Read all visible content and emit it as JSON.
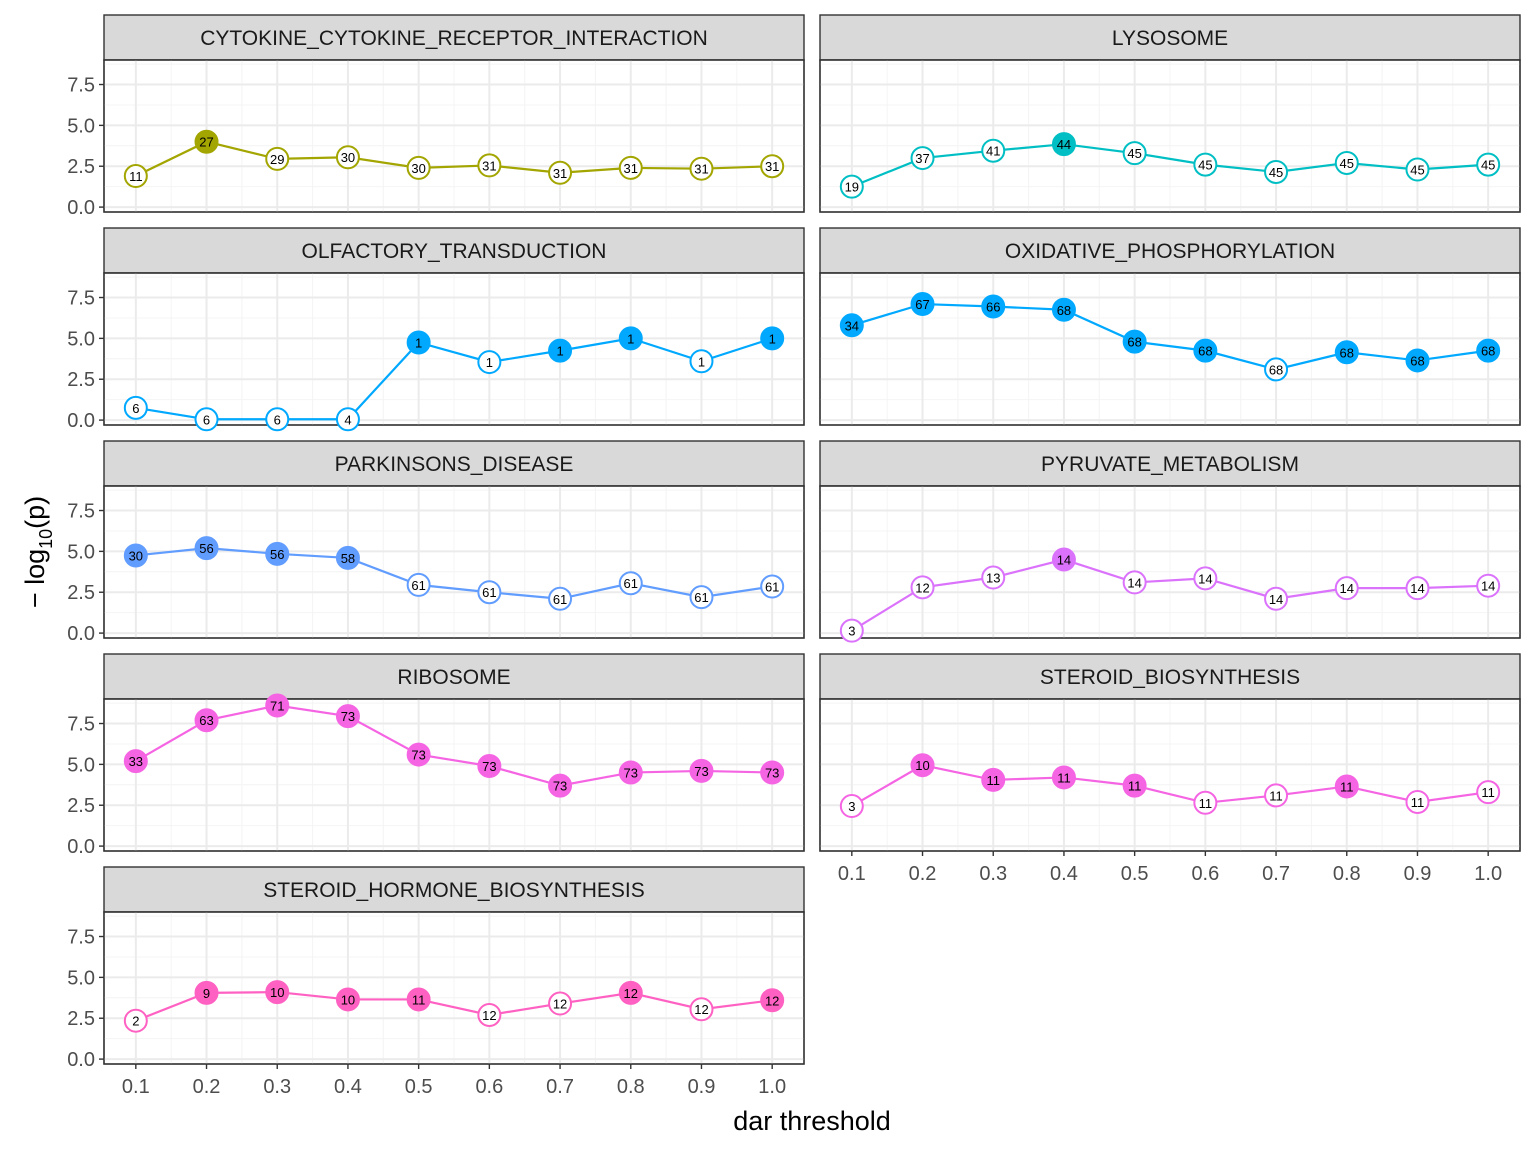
{
  "chart_data": {
    "type": "line",
    "xlabel": "dar threshold",
    "ylabel": "− log",
    "ylabel_sub": "10",
    "ylabel_tail": "(p)",
    "x": [
      0.1,
      0.2,
      0.3,
      0.4,
      0.5,
      0.6,
      0.7,
      0.8,
      0.9,
      1.0
    ],
    "x_tick_labels": [
      "0.1",
      "0.2",
      "0.3",
      "0.4",
      "0.5",
      "0.6",
      "0.7",
      "0.8",
      "0.9",
      "1.0"
    ],
    "y_ticks": [
      0,
      2.5,
      5,
      7.5
    ],
    "y_tick_labels": [
      "0.0",
      "2.5",
      "5.0",
      "7.5"
    ],
    "ylim": [
      -0.3,
      9.0
    ],
    "xlim": [
      0.055,
      1.045
    ],
    "facets": [
      {
        "name": "CYTOKINE_CYTOKINE_RECEPTOR_INTERACTION",
        "color": "#a3a500",
        "y": [
          1.9,
          4.0,
          2.95,
          3.05,
          2.4,
          2.55,
          2.1,
          2.4,
          2.35,
          2.5
        ],
        "labels": [
          "11",
          "27",
          "29",
          "30",
          "30",
          "31",
          "31",
          "31",
          "31",
          "31"
        ],
        "filled": [
          false,
          true,
          false,
          false,
          false,
          false,
          false,
          false,
          false,
          false
        ]
      },
      {
        "name": "LYSOSOME",
        "color": "#00bfc4",
        "y": [
          1.25,
          3.0,
          3.45,
          3.85,
          3.3,
          2.6,
          2.15,
          2.7,
          2.3,
          2.6
        ],
        "labels": [
          "19",
          "37",
          "41",
          "44",
          "45",
          "45",
          "45",
          "45",
          "45",
          "45"
        ],
        "filled": [
          false,
          false,
          false,
          true,
          false,
          false,
          false,
          false,
          false,
          false
        ]
      },
      {
        "name": "OLFACTORY_TRANSDUCTION",
        "color": "#00a9ff",
        "y": [
          0.75,
          0.05,
          0.05,
          0.05,
          4.75,
          3.55,
          4.25,
          5.0,
          3.6,
          5.0
        ],
        "labels": [
          "6",
          "6",
          "6",
          "4",
          "1",
          "1",
          "1",
          "1",
          "1",
          "1"
        ],
        "filled": [
          false,
          false,
          false,
          false,
          true,
          false,
          true,
          true,
          false,
          true
        ]
      },
      {
        "name": "OXIDATIVE_PHOSPHORYLATION",
        "color": "#00a9ff",
        "y": [
          5.8,
          7.1,
          6.95,
          6.75,
          4.8,
          4.25,
          3.1,
          4.15,
          3.65,
          4.25
        ],
        "labels": [
          "34",
          "67",
          "66",
          "68",
          "68",
          "68",
          "68",
          "68",
          "68",
          "68"
        ],
        "filled": [
          true,
          true,
          true,
          true,
          true,
          true,
          false,
          true,
          true,
          true
        ]
      },
      {
        "name": "PARKINSONS_DISEASE",
        "color": "#619cff",
        "y": [
          4.75,
          5.2,
          4.85,
          4.6,
          2.95,
          2.5,
          2.1,
          3.05,
          2.2,
          2.85
        ],
        "labels": [
          "30",
          "56",
          "56",
          "58",
          "61",
          "61",
          "61",
          "61",
          "61",
          "61"
        ],
        "filled": [
          true,
          true,
          true,
          true,
          false,
          false,
          false,
          false,
          false,
          false
        ]
      },
      {
        "name": "PYRUVATE_METABOLISM",
        "color": "#db72fb",
        "y": [
          0.15,
          2.8,
          3.4,
          4.5,
          3.1,
          3.35,
          2.1,
          2.75,
          2.75,
          2.9
        ],
        "labels": [
          "3",
          "12",
          "13",
          "14",
          "14",
          "14",
          "14",
          "14",
          "14",
          "14"
        ],
        "filled": [
          false,
          false,
          false,
          true,
          false,
          false,
          false,
          false,
          false,
          false
        ]
      },
      {
        "name": "RIBOSOME",
        "color": "#f564e3",
        "y": [
          5.2,
          7.7,
          8.6,
          7.95,
          5.6,
          4.9,
          3.7,
          4.5,
          4.6,
          4.5
        ],
        "labels": [
          "33",
          "63",
          "71",
          "73",
          "73",
          "73",
          "73",
          "73",
          "73",
          "73"
        ],
        "filled": [
          true,
          true,
          true,
          true,
          true,
          true,
          true,
          true,
          true,
          true
        ]
      },
      {
        "name": "STEROID_BIOSYNTHESIS",
        "color": "#f564e3",
        "y": [
          2.45,
          4.95,
          4.05,
          4.2,
          3.7,
          2.65,
          3.1,
          3.65,
          2.7,
          3.3
        ],
        "labels": [
          "3",
          "10",
          "11",
          "11",
          "11",
          "11",
          "11",
          "11",
          "11",
          "11"
        ],
        "filled": [
          false,
          true,
          true,
          true,
          true,
          false,
          false,
          true,
          false,
          false
        ]
      },
      {
        "name": "STEROID_HORMONE_BIOSYNTHESIS",
        "color": "#ff61c3",
        "y": [
          2.35,
          4.05,
          4.1,
          3.65,
          3.65,
          2.7,
          3.4,
          4.05,
          3.05,
          3.6
        ],
        "labels": [
          "2",
          "9",
          "10",
          "10",
          "11",
          "12",
          "12",
          "12",
          "12",
          "12"
        ],
        "filled": [
          false,
          true,
          true,
          true,
          true,
          false,
          false,
          true,
          false,
          true
        ]
      }
    ],
    "grid": true,
    "legend": "none"
  }
}
